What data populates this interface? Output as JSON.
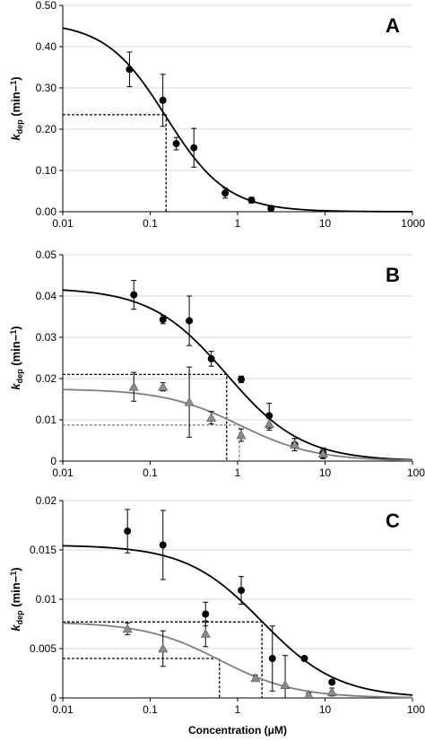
{
  "figure": {
    "xlabel": "Concentration (μM)",
    "colors": {
      "black": "#000000",
      "gray": "#7f7f7f",
      "marker_gray": "#8c8c8c",
      "grid": "#d9d9d9"
    }
  },
  "chart_data": [
    {
      "type": "scatter",
      "panel_label": "A",
      "xscale": "log",
      "xlim": [
        0.01,
        1000
      ],
      "ylim": [
        0,
        0.5
      ],
      "x_ticks": [
        "0.01",
        "0.1",
        "1",
        "10",
        "1000"
      ],
      "y_ticks": [
        "0.00",
        "0.10",
        "0.20",
        "0.30",
        "0.40",
        "0.50"
      ],
      "ylabel": "kdep (min−1)",
      "grid": true,
      "series": [
        {
          "marker": "circle",
          "color": "#000000",
          "x": [
            0.09,
            0.27,
            0.42,
            0.75,
            2.1,
            5.0,
            9.5
          ],
          "y": [
            0.345,
            0.27,
            0.165,
            0.155,
            0.045,
            0.028,
            0.008
          ],
          "err": [
            0.042,
            0.063,
            0.015,
            0.047,
            0.012,
            0.007,
            0.003
          ],
          "fit": {
            "top": 0.46,
            "ic50": 0.3
          }
        }
      ],
      "dashed_guides": [
        {
          "x": 0.3,
          "y": 0.235,
          "color": "#000000"
        }
      ]
    },
    {
      "type": "scatter",
      "panel_label": "B",
      "xscale": "log",
      "xlim": [
        0.01,
        100
      ],
      "ylim": [
        0,
        0.05
      ],
      "x_ticks": [
        "0.01",
        "0.1",
        "1",
        "10",
        "100"
      ],
      "y_ticks": [
        "0",
        "0.01",
        "0.02",
        "0.03",
        "0.04",
        "0.05"
      ],
      "ylabel": "kdep (min−1)",
      "grid": true,
      "series": [
        {
          "marker": "circle",
          "color": "#000000",
          "x": [
            0.065,
            0.14,
            0.28,
            0.5,
            1.1,
            2.3,
            4.5,
            9.5
          ],
          "y": [
            0.0403,
            0.0343,
            0.034,
            0.0248,
            0.0198,
            0.011,
            0.004,
            0.002
          ],
          "err": [
            0.0035,
            0.001,
            0.006,
            0.0018,
            0.0008,
            0.003,
            0.0015,
            0.0012
          ],
          "fit": {
            "top": 0.042,
            "ic50": 0.75
          }
        },
        {
          "marker": "triangle",
          "color": "#8c8c8c",
          "x": [
            0.065,
            0.14,
            0.28,
            0.5,
            1.1,
            2.3,
            4.5,
            9.5
          ],
          "y": [
            0.018,
            0.018,
            0.0143,
            0.0105,
            0.0063,
            0.009,
            0.004,
            0.0018
          ],
          "err": [
            0.0035,
            0.001,
            0.0085,
            0.0015,
            0.0015,
            0.0015,
            0.0015,
            0.0012
          ],
          "fit": {
            "top": 0.0175,
            "ic50": 1.05
          }
        }
      ],
      "dashed_guides": [
        {
          "x": 0.75,
          "y": 0.021,
          "color": "#000000"
        },
        {
          "x": 1.05,
          "y": 0.00875,
          "color": "#7f7f7f"
        }
      ]
    },
    {
      "type": "scatter",
      "panel_label": "C",
      "xscale": "log",
      "xlim": [
        0.01,
        100
      ],
      "ylim": [
        0,
        0.02
      ],
      "x_ticks": [
        "0.01",
        "0.1",
        "1",
        "10",
        "100"
      ],
      "y_ticks": [
        "0",
        "0.005",
        "0.01",
        "0.015",
        "0.02"
      ],
      "ylabel": "kdep (min−1)",
      "grid": true,
      "series": [
        {
          "marker": "circle",
          "color": "#000000",
          "x": [
            0.055,
            0.14,
            0.43,
            1.1,
            2.5,
            5.8,
            12
          ],
          "y": [
            0.0169,
            0.0155,
            0.0085,
            0.0109,
            0.004,
            0.004,
            0.0016
          ],
          "err": [
            0.0022,
            0.0035,
            0.0012,
            0.0014,
            0.0033,
            0.0002,
            0.0002
          ],
          "fit": {
            "top": 0.0155,
            "ic50": 1.9
          }
        },
        {
          "marker": "triangle",
          "color": "#8c8c8c",
          "x": [
            0.055,
            0.14,
            0.43,
            1.6,
            3.5,
            6.5,
            12
          ],
          "y": [
            0.007,
            0.005,
            0.0065,
            0.002,
            0.0013,
            0.0003,
            0.0006
          ],
          "err": [
            0.0006,
            0.0018,
            0.0013,
            0.0003,
            0.003,
            0.0002,
            0.0004
          ],
          "fit": {
            "top": 0.0077,
            "ic50": 0.62
          }
        }
      ],
      "dashed_guides": [
        {
          "x": 1.9,
          "y": 0.0077,
          "color": "#000000"
        },
        {
          "x": 0.62,
          "y": 0.004,
          "color": "#000000"
        }
      ]
    }
  ]
}
